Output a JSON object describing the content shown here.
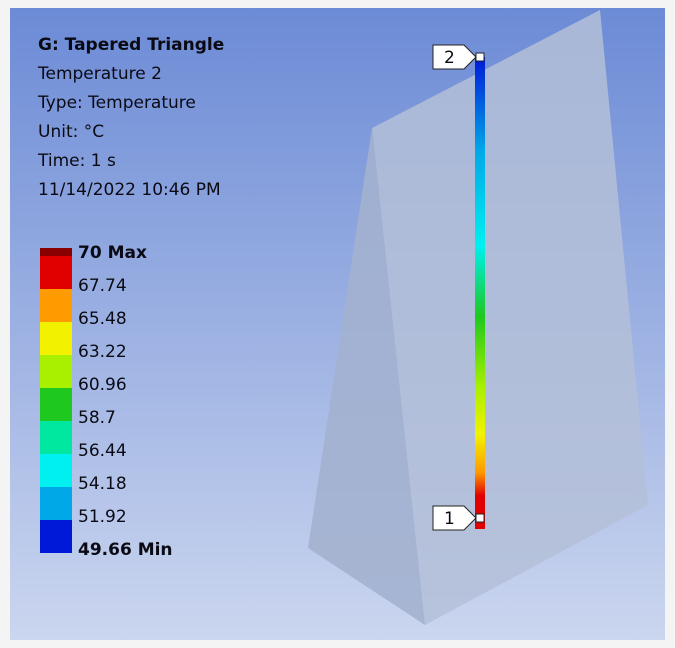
{
  "header": {
    "title": "G: Tapered Triangle",
    "lines": [
      "Temperature 2",
      "Type: Temperature",
      "Unit: °C",
      "Time: 1 s",
      "11/14/2022 10:46 PM"
    ]
  },
  "legend": {
    "labels": [
      "70 Max",
      "67.74",
      "65.48",
      "63.22",
      "60.96",
      "58.7",
      "56.44",
      "54.18",
      "51.92",
      "49.66 Min"
    ],
    "colors": [
      "#e00000",
      "#ff9a00",
      "#f2f200",
      "#a8f000",
      "#1ec81e",
      "#00e8a0",
      "#00f0f0",
      "#00a8e8",
      "#0018d8"
    ]
  },
  "probes": [
    {
      "label": "2"
    },
    {
      "label": "1"
    }
  ]
}
